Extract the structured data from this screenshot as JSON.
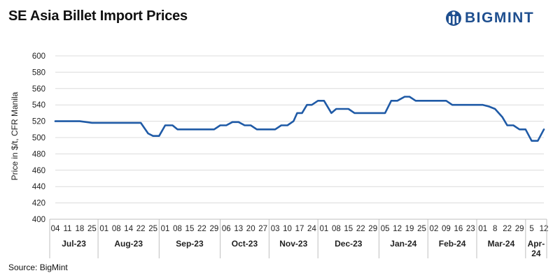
{
  "title": "SE Asia Billet Import Prices",
  "brand": {
    "name": "BIGMINT",
    "color": "#1f4f8f"
  },
  "source": "Source: BigMint",
  "chart_data": {
    "type": "line",
    "title": "SE Asia Billet Import Prices",
    "ylabel": "Price in $/t, CFR Manila",
    "xlabel": "",
    "ylim": [
      400,
      600
    ],
    "yticks": [
      400,
      420,
      440,
      460,
      480,
      500,
      520,
      540,
      560,
      580,
      600
    ],
    "grid": true,
    "line_color": "#1f5aa6",
    "x": [
      "04",
      "11",
      "18",
      "25",
      "01",
      "08",
      "14",
      "22",
      "25",
      "01",
      "08",
      "15",
      "22",
      "29",
      "06",
      "13",
      "20",
      "27",
      "03",
      "10",
      "17",
      "24",
      "01",
      "08",
      "15",
      "22",
      "29",
      "05",
      "12",
      "19",
      "25",
      "02",
      "09",
      "16",
      "23",
      "01",
      "8",
      "22",
      "29",
      "5",
      "12"
    ],
    "months": [
      {
        "label": "Jul-23",
        "start": 0,
        "end": 4
      },
      {
        "label": "Aug-23",
        "start": 4,
        "end": 9
      },
      {
        "label": "Sep-23",
        "start": 9,
        "end": 14
      },
      {
        "label": "Oct-23",
        "start": 14,
        "end": 18
      },
      {
        "label": "Nov-23",
        "start": 18,
        "end": 22
      },
      {
        "label": "Dec-23",
        "start": 22,
        "end": 27
      },
      {
        "label": "Jan-24",
        "start": 27,
        "end": 31
      },
      {
        "label": "Feb-24",
        "start": 31,
        "end": 35
      },
      {
        "label": "Mar-24",
        "start": 35,
        "end": 39
      },
      {
        "label": "Apr-24",
        "start": 39,
        "end": 41
      }
    ],
    "series": [
      {
        "name": "SE Asia Billet Import Price",
        "points": [
          [
            0,
            520
          ],
          [
            1,
            520
          ],
          [
            2,
            520
          ],
          [
            3,
            518
          ],
          [
            4,
            518
          ],
          [
            5,
            518
          ],
          [
            6,
            518
          ],
          [
            7,
            518
          ],
          [
            7.6,
            505
          ],
          [
            8,
            502
          ],
          [
            8.5,
            502
          ],
          [
            9,
            515
          ],
          [
            9.6,
            515
          ],
          [
            10,
            510
          ],
          [
            11,
            510
          ],
          [
            12,
            510
          ],
          [
            13,
            510
          ],
          [
            13.5,
            515
          ],
          [
            14,
            515
          ],
          [
            14.5,
            519
          ],
          [
            15,
            519
          ],
          [
            15.5,
            515
          ],
          [
            16,
            515
          ],
          [
            16.5,
            510
          ],
          [
            17,
            510
          ],
          [
            17.5,
            510
          ],
          [
            18,
            510
          ],
          [
            18.5,
            515
          ],
          [
            19,
            515
          ],
          [
            19.5,
            520
          ],
          [
            19.8,
            530
          ],
          [
            20.2,
            530
          ],
          [
            20.6,
            540
          ],
          [
            21,
            540
          ],
          [
            21.5,
            545
          ],
          [
            22,
            545
          ],
          [
            22.6,
            530
          ],
          [
            23,
            535
          ],
          [
            23.5,
            535
          ],
          [
            24,
            535
          ],
          [
            24.5,
            530
          ],
          [
            25,
            530
          ],
          [
            26,
            530
          ],
          [
            27,
            530
          ],
          [
            27.5,
            545
          ],
          [
            28,
            545
          ],
          [
            28.6,
            550
          ],
          [
            29,
            550
          ],
          [
            29.5,
            545
          ],
          [
            30,
            545
          ],
          [
            31,
            545
          ],
          [
            32,
            545
          ],
          [
            32.5,
            540
          ],
          [
            33,
            540
          ],
          [
            34,
            540
          ],
          [
            35,
            540
          ],
          [
            35.5,
            538
          ],
          [
            36,
            535
          ],
          [
            36.6,
            525
          ],
          [
            37,
            515
          ],
          [
            37.5,
            515
          ],
          [
            38,
            510
          ],
          [
            38.5,
            510
          ],
          [
            39,
            496
          ],
          [
            39.5,
            496
          ],
          [
            40,
            510
          ]
        ]
      }
    ]
  }
}
